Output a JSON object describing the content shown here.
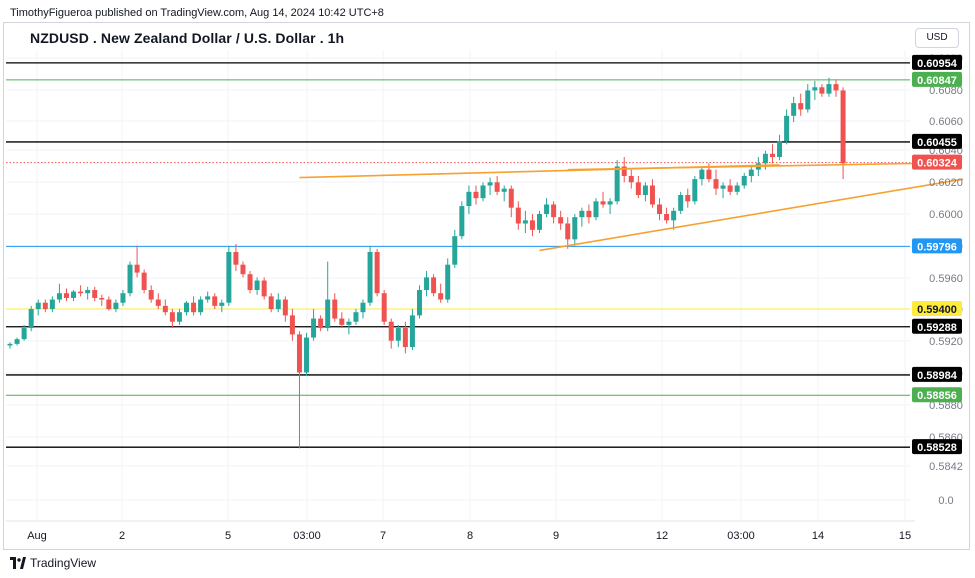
{
  "header": {
    "publish_text": "TimothyFigueroa published on TradingView.com, Aug 14, 2024 10:42 UTC+8",
    "symbol_title": "NZDUSD . New Zealand Dollar / U.S. Dollar . 1h",
    "currency": "USD"
  },
  "footer": {
    "logo_text": "TradingView"
  },
  "colors": {
    "up": "#26a69a",
    "down": "#ef5350",
    "pattern": "#f7a130"
  },
  "chart_data": {
    "type": "candlestick",
    "title": "NZDUSD . New Zealand Dollar / U.S. Dollar . 1h",
    "unit": "USD",
    "y_ticks": [
      "0.6100",
      "0.6080",
      "0.6060",
      "0.6040",
      "0.6020",
      "0.6000",
      "0.5980",
      "0.5960",
      "0.5940",
      "0.5920",
      "0.5900",
      "0.5880",
      "0.5860",
      "0.5842",
      "0.0"
    ],
    "x_ticks": [
      "Aug",
      "2",
      "5",
      "03:00",
      "7",
      "8",
      "9",
      "12",
      "03:00",
      "14",
      "15"
    ],
    "levels": [
      {
        "value": 0.60954,
        "label": "0.60954",
        "color": "#000000",
        "text_color": "#ffffff",
        "style": "solid"
      },
      {
        "value": 0.60847,
        "label": "0.60847",
        "color": "#4caf50",
        "text_color": "#ffffff",
        "style": "solid"
      },
      {
        "value": 0.60455,
        "label": "0.60455",
        "color": "#000000",
        "text_color": "#ffffff",
        "style": "solid"
      },
      {
        "value": 0.60324,
        "label": "0.60324",
        "color": "#ef5350",
        "text_color": "#ffffff",
        "style": "dotted"
      },
      {
        "value": 0.59796,
        "label": "0.59796",
        "color": "#2196f3",
        "text_color": "#ffffff",
        "style": "solid"
      },
      {
        "value": 0.594,
        "label": "0.59400",
        "color": "#ffeb3b",
        "text_color": "#131722",
        "style": "solid"
      },
      {
        "value": 0.59288,
        "label": "0.59288",
        "color": "#000000",
        "text_color": "#ffffff",
        "style": "solid"
      },
      {
        "value": 0.58984,
        "label": "0.58984",
        "color": "#000000",
        "text_color": "#ffffff",
        "style": "solid"
      },
      {
        "value": 0.58856,
        "label": "0.58856",
        "color": "#4caf50",
        "text_color": "#ffffff",
        "style": "solid"
      },
      {
        "value": 0.58528,
        "label": "0.58528",
        "color": "#000000",
        "text_color": "#ffffff",
        "style": "solid"
      }
    ],
    "trendlines": [
      {
        "from": [
          41,
          0.6023
        ],
        "to": [
          109,
          0.6031
        ]
      },
      {
        "from": [
          79,
          0.6028
        ],
        "to": [
          129,
          0.6032
        ]
      },
      {
        "from": [
          75,
          0.5977
        ],
        "to": [
          135,
          0.6022
        ]
      }
    ],
    "candles": [
      [
        0.5917,
        0.5919,
        0.5915,
        0.5918
      ],
      [
        0.5918,
        0.5922,
        0.5917,
        0.5921
      ],
      [
        0.5921,
        0.593,
        0.592,
        0.5928
      ],
      [
        0.5928,
        0.5942,
        0.5926,
        0.594
      ],
      [
        0.594,
        0.5946,
        0.5936,
        0.5944
      ],
      [
        0.5944,
        0.5946,
        0.5938,
        0.594
      ],
      [
        0.594,
        0.5948,
        0.5938,
        0.5946
      ],
      [
        0.5946,
        0.5956,
        0.5944,
        0.595
      ],
      [
        0.595,
        0.5953,
        0.5945,
        0.5947
      ],
      [
        0.5947,
        0.5952,
        0.5945,
        0.5951
      ],
      [
        0.5951,
        0.5955,
        0.5948,
        0.595
      ],
      [
        0.595,
        0.5954,
        0.5946,
        0.5952
      ],
      [
        0.5952,
        0.5954,
        0.5945,
        0.5947
      ],
      [
        0.5947,
        0.5949,
        0.5942,
        0.5946
      ],
      [
        0.5946,
        0.5948,
        0.5939,
        0.594
      ],
      [
        0.594,
        0.5946,
        0.5938,
        0.5944
      ],
      [
        0.5944,
        0.5952,
        0.5942,
        0.595
      ],
      [
        0.595,
        0.597,
        0.5948,
        0.5968
      ],
      [
        0.5968,
        0.598,
        0.596,
        0.5963
      ],
      [
        0.5963,
        0.5965,
        0.595,
        0.5952
      ],
      [
        0.5952,
        0.5955,
        0.5944,
        0.5946
      ],
      [
        0.5946,
        0.595,
        0.594,
        0.5942
      ],
      [
        0.5942,
        0.5946,
        0.5936,
        0.5938
      ],
      [
        0.5938,
        0.594,
        0.5928,
        0.5932
      ],
      [
        0.5932,
        0.594,
        0.593,
        0.5938
      ],
      [
        0.5938,
        0.5945,
        0.5936,
        0.5944
      ],
      [
        0.5944,
        0.5948,
        0.5936,
        0.5938
      ],
      [
        0.5938,
        0.5948,
        0.5936,
        0.5946
      ],
      [
        0.5946,
        0.5951,
        0.5944,
        0.5948
      ],
      [
        0.5948,
        0.595,
        0.594,
        0.5942
      ],
      [
        0.5942,
        0.5946,
        0.5938,
        0.5944
      ],
      [
        0.5944,
        0.598,
        0.5942,
        0.5976
      ],
      [
        0.5976,
        0.5981,
        0.5964,
        0.5968
      ],
      [
        0.5968,
        0.597,
        0.596,
        0.5962
      ],
      [
        0.5962,
        0.5964,
        0.595,
        0.5952
      ],
      [
        0.5952,
        0.596,
        0.5949,
        0.5958
      ],
      [
        0.5958,
        0.596,
        0.5946,
        0.5948
      ],
      [
        0.5948,
        0.595,
        0.5938,
        0.594
      ],
      [
        0.594,
        0.595,
        0.5938,
        0.5946
      ],
      [
        0.5946,
        0.5948,
        0.5932,
        0.5936
      ],
      [
        0.5936,
        0.594,
        0.592,
        0.5924
      ],
      [
        0.5924,
        0.5926,
        0.5852,
        0.59
      ],
      [
        0.59,
        0.5925,
        0.5898,
        0.5922
      ],
      [
        0.5922,
        0.594,
        0.592,
        0.5934
      ],
      [
        0.5934,
        0.5936,
        0.5926,
        0.5928
      ],
      [
        0.5928,
        0.597,
        0.5926,
        0.5946
      ],
      [
        0.5946,
        0.595,
        0.5932,
        0.5934
      ],
      [
        0.5934,
        0.5938,
        0.5928,
        0.593
      ],
      [
        0.593,
        0.5934,
        0.5924,
        0.5932
      ],
      [
        0.5932,
        0.594,
        0.593,
        0.5938
      ],
      [
        0.5938,
        0.5946,
        0.5934,
        0.5944
      ],
      [
        0.5944,
        0.598,
        0.5942,
        0.5976
      ],
      [
        0.5976,
        0.5978,
        0.5948,
        0.595
      ],
      [
        0.595,
        0.5952,
        0.593,
        0.5932
      ],
      [
        0.5932,
        0.5934,
        0.5915,
        0.592
      ],
      [
        0.592,
        0.593,
        0.5916,
        0.5928
      ],
      [
        0.5928,
        0.5932,
        0.5912,
        0.5916
      ],
      [
        0.5916,
        0.594,
        0.5914,
        0.5936
      ],
      [
        0.5936,
        0.5955,
        0.5934,
        0.5952
      ],
      [
        0.5952,
        0.5964,
        0.5948,
        0.596
      ],
      [
        0.596,
        0.5962,
        0.5948,
        0.595
      ],
      [
        0.595,
        0.5956,
        0.5944,
        0.5946
      ],
      [
        0.5946,
        0.5972,
        0.5944,
        0.5968
      ],
      [
        0.5968,
        0.599,
        0.5966,
        0.5986
      ],
      [
        0.5986,
        0.6008,
        0.5984,
        0.6005
      ],
      [
        0.6005,
        0.6018,
        0.6,
        0.6014
      ],
      [
        0.6014,
        0.6018,
        0.6006,
        0.601
      ],
      [
        0.601,
        0.602,
        0.6008,
        0.6018
      ],
      [
        0.6018,
        0.6023,
        0.6012,
        0.602
      ],
      [
        0.602,
        0.6024,
        0.6012,
        0.6014
      ],
      [
        0.6014,
        0.6018,
        0.6008,
        0.6016
      ],
      [
        0.6016,
        0.6018,
        0.5998,
        0.6004
      ],
      [
        0.6004,
        0.6008,
        0.599,
        0.5994
      ],
      [
        0.5994,
        0.6002,
        0.5988,
        0.5996
      ],
      [
        0.5996,
        0.6,
        0.5986,
        0.599
      ],
      [
        0.599,
        0.6002,
        0.5988,
        0.6
      ],
      [
        0.6,
        0.601,
        0.5998,
        0.6006
      ],
      [
        0.6006,
        0.6008,
        0.5994,
        0.5998
      ],
      [
        0.5998,
        0.6002,
        0.599,
        0.5994
      ],
      [
        0.5994,
        0.5998,
        0.5978,
        0.5984
      ],
      [
        0.5984,
        0.6,
        0.598,
        0.5998
      ],
      [
        0.5998,
        0.6004,
        0.5992,
        0.6002
      ],
      [
        0.6002,
        0.6006,
        0.5994,
        0.5998
      ],
      [
        0.5998,
        0.601,
        0.5996,
        0.6008
      ],
      [
        0.6008,
        0.6014,
        0.6004,
        0.6006
      ],
      [
        0.6006,
        0.601,
        0.6,
        0.6008
      ],
      [
        0.6008,
        0.6034,
        0.6006,
        0.603
      ],
      [
        0.603,
        0.6036,
        0.602,
        0.6024
      ],
      [
        0.6024,
        0.6028,
        0.6016,
        0.602
      ],
      [
        0.602,
        0.6024,
        0.601,
        0.6012
      ],
      [
        0.6012,
        0.602,
        0.6008,
        0.6018
      ],
      [
        0.6018,
        0.6022,
        0.6004,
        0.6006
      ],
      [
        0.6006,
        0.601,
        0.5996,
        0.6
      ],
      [
        0.6,
        0.6004,
        0.5994,
        0.5996
      ],
      [
        0.5996,
        0.6004,
        0.599,
        0.6002
      ],
      [
        0.6002,
        0.6014,
        0.6,
        0.6012
      ],
      [
        0.6012,
        0.6016,
        0.6004,
        0.6008
      ],
      [
        0.6008,
        0.6024,
        0.6006,
        0.6022
      ],
      [
        0.6022,
        0.603,
        0.6018,
        0.6028
      ],
      [
        0.6028,
        0.6032,
        0.602,
        0.6022
      ],
      [
        0.6022,
        0.6028,
        0.6012,
        0.6016
      ],
      [
        0.6016,
        0.602,
        0.601,
        0.6018
      ],
      [
        0.6018,
        0.6022,
        0.6012,
        0.6014
      ],
      [
        0.6014,
        0.602,
        0.6012,
        0.6018
      ],
      [
        0.6018,
        0.6026,
        0.6016,
        0.6024
      ],
      [
        0.6024,
        0.603,
        0.602,
        0.6028
      ],
      [
        0.6028,
        0.6036,
        0.6024,
        0.6032
      ],
      [
        0.6032,
        0.604,
        0.6028,
        0.6038
      ],
      [
        0.6038,
        0.6044,
        0.6032,
        0.6036
      ],
      [
        0.6036,
        0.605,
        0.6034,
        0.6046
      ],
      [
        0.6046,
        0.6066,
        0.6044,
        0.6062
      ],
      [
        0.6062,
        0.6074,
        0.6058,
        0.607
      ],
      [
        0.607,
        0.6076,
        0.6062,
        0.6066
      ],
      [
        0.6066,
        0.6082,
        0.6064,
        0.6078
      ],
      [
        0.6078,
        0.6084,
        0.6072,
        0.608
      ],
      [
        0.608,
        0.6082,
        0.6074,
        0.6076
      ],
      [
        0.6076,
        0.6086,
        0.6074,
        0.6082
      ],
      [
        0.6082,
        0.6085,
        0.6074,
        0.6078
      ],
      [
        0.6078,
        0.608,
        0.6022,
        0.6032
      ]
    ]
  }
}
